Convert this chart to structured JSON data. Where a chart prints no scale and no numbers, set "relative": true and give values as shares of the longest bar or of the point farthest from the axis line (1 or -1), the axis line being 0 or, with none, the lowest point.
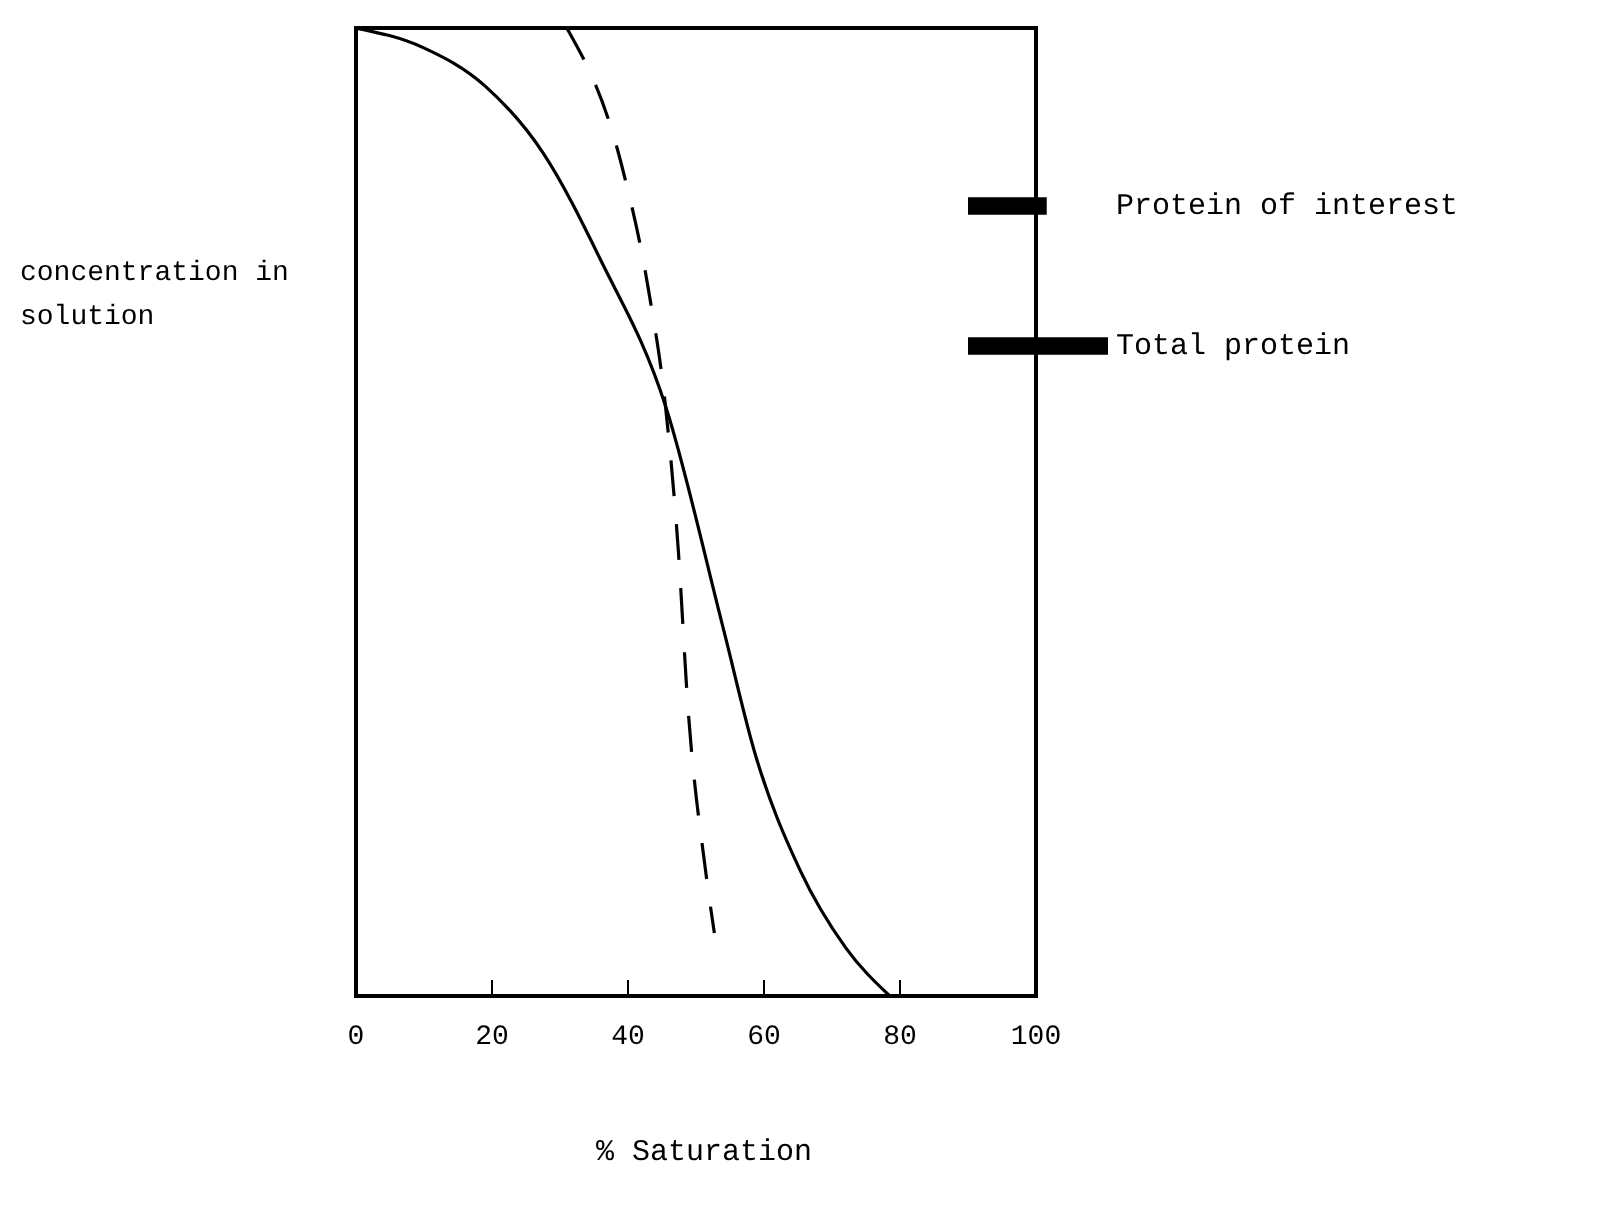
{
  "chart_data": {
    "type": "line",
    "relative": true,
    "xlabel": "% Saturation",
    "ylabel": "concentration in solution",
    "xlim": [
      0,
      100
    ],
    "xticks": [
      0,
      20,
      40,
      60,
      80,
      100
    ],
    "legend": "top right",
    "marker": "none",
    "series": [
      {
        "name": "Total protein",
        "color": "#000000",
        "line_style": "solid",
        "x": [
          0,
          9.8,
          19,
          27.6,
          36,
          45.5,
          54,
          58.7,
          65.3,
          72,
          78.5
        ],
        "values": [
          1,
          0.98,
          0.94,
          0.87,
          0.76,
          0.61,
          0.38,
          0.25,
          0.13,
          0.05,
          0
        ]
      },
      {
        "name": "Protein of interest",
        "color": "#000000",
        "line_style": "dashed",
        "x": [
          31,
          39,
          43,
          45.5,
          47.4,
          48.8,
          51.4,
          52.7
        ],
        "values": [
          1,
          0.86,
          0.73,
          0.61,
          0.46,
          0.3,
          0.13,
          0.065
        ]
      }
    ]
  }
}
